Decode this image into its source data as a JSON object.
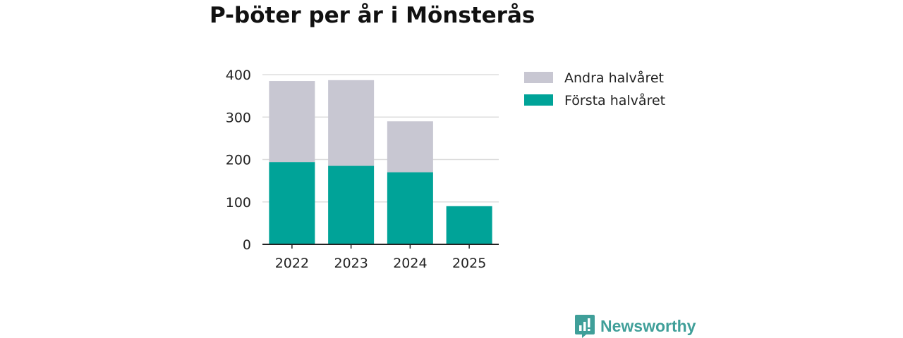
{
  "chart_data": {
    "type": "bar",
    "stacked": true,
    "title": "P-böter per år i Mönsterås",
    "categories": [
      "2022",
      "2023",
      "2024",
      "2025"
    ],
    "series": [
      {
        "name": "Första halvåret",
        "color": "#00a398",
        "values": [
          194,
          185,
          170,
          90
        ]
      },
      {
        "name": "Andra halvåret",
        "color": "#c8c7d2",
        "values": [
          191,
          202,
          120,
          0
        ]
      }
    ],
    "legend_order": [
      "Andra halvåret",
      "Första halvåret"
    ],
    "yticks": [
      "0",
      "100",
      "200",
      "300",
      "400"
    ],
    "ylim": [
      0,
      400
    ],
    "grid": true,
    "legend_position": "right",
    "xlabel": "",
    "ylabel": ""
  },
  "brand": {
    "name": "Newsworthy",
    "icon": "newsworthy-logo-icon",
    "color": "#3f9f99"
  }
}
